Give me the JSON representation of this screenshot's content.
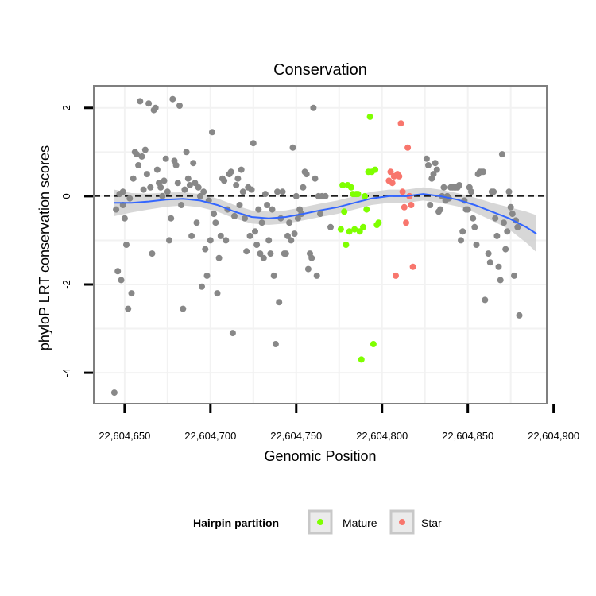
{
  "chart_data": {
    "type": "scatter",
    "title": "Conservation",
    "xlabel": "Genomic Position",
    "ylabel": "phyloP LRT conservation scores",
    "xlim": [
      22604632,
      22604896
    ],
    "ylim": [
      -4.7,
      2.5
    ],
    "xticks": [
      22604650,
      22604700,
      22604750,
      22604800,
      22604850,
      22604900
    ],
    "xtick_labels": [
      "22,604,650",
      "22,604,700",
      "22,604,750",
      "22,604,800",
      "22,604,850",
      "22,604,900"
    ],
    "yticks": [
      -4,
      -2,
      0,
      2
    ],
    "ytick_labels": [
      "-4",
      "-2",
      "0",
      "2"
    ],
    "reference_line": {
      "y": 0,
      "style": "dashed",
      "color": "#000000"
    },
    "legend": {
      "title": "Hairpin partition",
      "position": "bottom",
      "entries": [
        {
          "label": "Mature",
          "color": "#7FFF00"
        },
        {
          "label": "Star",
          "color": "#F8766D"
        }
      ]
    },
    "colors": {
      "other": "#888888",
      "mature": "#7FFF00",
      "star": "#F8766D",
      "smooth": "#3366FF",
      "band": "#D0D0D0",
      "grid": "#F2F2F2"
    },
    "series": [
      {
        "name": "Other",
        "points": [
          [
            22604644,
            -4.45
          ],
          [
            22604645,
            -0.3
          ],
          [
            22604646,
            -1.7
          ],
          [
            22604647,
            0.05
          ],
          [
            22604648,
            -1.9
          ],
          [
            22604649,
            -0.2
          ],
          [
            22604649,
            0.1
          ],
          [
            22604650,
            -0.5
          ],
          [
            22604651,
            -1.1
          ],
          [
            22604652,
            -2.55
          ],
          [
            22604653,
            -0.05
          ],
          [
            22604654,
            -2.2
          ],
          [
            22604655,
            0.4
          ],
          [
            22604656,
            1.0
          ],
          [
            22604657,
            0.95
          ],
          [
            22604658,
            0.7
          ],
          [
            22604659,
            2.15
          ],
          [
            22604660,
            0.9
          ],
          [
            22604661,
            0.15
          ],
          [
            22604662,
            1.05
          ],
          [
            22604663,
            0.5
          ],
          [
            22604664,
            2.1
          ],
          [
            22604665,
            0.2
          ],
          [
            22604666,
            -1.3
          ],
          [
            22604667,
            1.95
          ],
          [
            22604668,
            2.0
          ],
          [
            22604669,
            0.6
          ],
          [
            22604670,
            0.3
          ],
          [
            22604671,
            0.2
          ],
          [
            22604672,
            0.0
          ],
          [
            22604673,
            0.35
          ],
          [
            22604674,
            0.85
          ],
          [
            22604675,
            0.1
          ],
          [
            22604676,
            -1.0
          ],
          [
            22604677,
            -0.5
          ],
          [
            22604678,
            2.2
          ],
          [
            22604679,
            0.8
          ],
          [
            22604680,
            0.7
          ],
          [
            22604681,
            0.3
          ],
          [
            22604682,
            2.05
          ],
          [
            22604683,
            -0.2
          ],
          [
            22604684,
            -2.55
          ],
          [
            22604685,
            0.15
          ],
          [
            22604686,
            1.0
          ],
          [
            22604687,
            0.4
          ],
          [
            22604688,
            0.25
          ],
          [
            22604689,
            -0.9
          ],
          [
            22604690,
            0.75
          ],
          [
            22604691,
            0.3
          ],
          [
            22604692,
            -0.6
          ],
          [
            22604693,
            0.2
          ],
          [
            22604694,
            0.0
          ],
          [
            22604695,
            -2.05
          ],
          [
            22604696,
            0.1
          ],
          [
            22604697,
            -1.2
          ],
          [
            22604698,
            -1.8
          ],
          [
            22604699,
            -0.1
          ],
          [
            22604700,
            -1.0
          ],
          [
            22604701,
            1.45
          ],
          [
            22604702,
            -0.4
          ],
          [
            22604703,
            -0.6
          ],
          [
            22604704,
            -2.2
          ],
          [
            22604705,
            -1.4
          ],
          [
            22604706,
            -0.9
          ],
          [
            22604707,
            0.4
          ],
          [
            22604708,
            0.35
          ],
          [
            22604709,
            -1.0
          ],
          [
            22604710,
            -0.3
          ],
          [
            22604711,
            0.5
          ],
          [
            22604712,
            0.55
          ],
          [
            22604713,
            -3.1
          ],
          [
            22604714,
            -0.45
          ],
          [
            22604715,
            0.25
          ],
          [
            22604716,
            0.4
          ],
          [
            22604717,
            -0.2
          ],
          [
            22604718,
            0.6
          ],
          [
            22604719,
            0.1
          ],
          [
            22604720,
            -0.5
          ],
          [
            22604721,
            -1.25
          ],
          [
            22604722,
            0.2
          ],
          [
            22604723,
            -0.9
          ],
          [
            22604724,
            0.15
          ],
          [
            22604725,
            1.2
          ],
          [
            22604726,
            -0.8
          ],
          [
            22604727,
            -1.1
          ],
          [
            22604728,
            -0.3
          ],
          [
            22604729,
            -1.3
          ],
          [
            22604730,
            -0.6
          ],
          [
            22604731,
            -1.4
          ],
          [
            22604732,
            0.05
          ],
          [
            22604733,
            -0.2
          ],
          [
            22604734,
            -1.0
          ],
          [
            22604735,
            -1.3
          ],
          [
            22604736,
            -0.3
          ],
          [
            22604737,
            -1.8
          ],
          [
            22604738,
            -3.35
          ],
          [
            22604739,
            0.1
          ],
          [
            22604740,
            -2.4
          ],
          [
            22604741,
            -0.5
          ],
          [
            22604742,
            0.1
          ],
          [
            22604743,
            -1.3
          ],
          [
            22604744,
            -1.3
          ],
          [
            22604745,
            -0.9
          ],
          [
            22604746,
            -0.6
          ],
          [
            22604747,
            -1.0
          ],
          [
            22604748,
            1.1
          ],
          [
            22604749,
            -0.85
          ],
          [
            22604750,
            0.0
          ],
          [
            22604751,
            -0.5
          ],
          [
            22604752,
            -0.3
          ],
          [
            22604753,
            -0.4
          ],
          [
            22604754,
            0.2
          ],
          [
            22604755,
            0.55
          ],
          [
            22604756,
            0.5
          ],
          [
            22604757,
            -1.65
          ],
          [
            22604758,
            -1.3
          ],
          [
            22604759,
            -1.4
          ],
          [
            22604760,
            2.0
          ],
          [
            22604761,
            0.4
          ],
          [
            22604762,
            -1.8
          ],
          [
            22604763,
            0.0
          ],
          [
            22604764,
            -0.4
          ],
          [
            22604765,
            0.0
          ],
          [
            22604767,
            0.0
          ],
          [
            22604770,
            -0.7
          ],
          [
            22604826,
            0.85
          ],
          [
            22604827,
            0.7
          ],
          [
            22604828,
            -0.2
          ],
          [
            22604829,
            0.4
          ],
          [
            22604830,
            0.5
          ],
          [
            22604831,
            0.75
          ],
          [
            22604832,
            0.6
          ],
          [
            22604833,
            -0.35
          ],
          [
            22604834,
            -0.3
          ],
          [
            22604835,
            0.0
          ],
          [
            22604836,
            0.2
          ],
          [
            22604837,
            -0.1
          ],
          [
            22604838,
            0.0
          ],
          [
            22604839,
            -0.05
          ],
          [
            22604840,
            0.2
          ],
          [
            22604841,
            0.2
          ],
          [
            22604842,
            0.2
          ],
          [
            22604843,
            0.2
          ],
          [
            22604844,
            0.2
          ],
          [
            22604845,
            0.25
          ],
          [
            22604846,
            -1.0
          ],
          [
            22604847,
            -0.8
          ],
          [
            22604848,
            -0.1
          ],
          [
            22604849,
            -0.3
          ],
          [
            22604850,
            -0.3
          ],
          [
            22604851,
            0.2
          ],
          [
            22604852,
            0.1
          ],
          [
            22604853,
            -0.5
          ],
          [
            22604854,
            -0.7
          ],
          [
            22604855,
            -1.1
          ],
          [
            22604856,
            0.5
          ],
          [
            22604857,
            0.55
          ],
          [
            22604858,
            0.55
          ],
          [
            22604859,
            0.55
          ],
          [
            22604860,
            -2.35
          ],
          [
            22604862,
            -1.3
          ],
          [
            22604863,
            -1.5
          ],
          [
            22604864,
            0.1
          ],
          [
            22604865,
            0.1
          ],
          [
            22604866,
            -0.5
          ],
          [
            22604867,
            -0.9
          ],
          [
            22604868,
            -1.6
          ],
          [
            22604869,
            -1.9
          ],
          [
            22604870,
            0.95
          ],
          [
            22604871,
            -0.6
          ],
          [
            22604872,
            -1.2
          ],
          [
            22604873,
            -0.8
          ],
          [
            22604874,
            0.1
          ],
          [
            22604875,
            -0.25
          ],
          [
            22604876,
            -0.4
          ],
          [
            22604877,
            -1.8
          ],
          [
            22604878,
            -0.55
          ],
          [
            22604879,
            -0.7
          ],
          [
            22604880,
            -2.7
          ]
        ]
      },
      {
        "name": "Mature",
        "points": [
          [
            22604776,
            -0.75
          ],
          [
            22604777,
            0.25
          ],
          [
            22604778,
            -0.35
          ],
          [
            22604779,
            -1.1
          ],
          [
            22604780,
            0.25
          ],
          [
            22604781,
            -0.8
          ],
          [
            22604782,
            0.2
          ],
          [
            22604783,
            0.05
          ],
          [
            22604784,
            -0.75
          ],
          [
            22604785,
            0.05
          ],
          [
            22604786,
            0.05
          ],
          [
            22604787,
            -0.8
          ],
          [
            22604788,
            -3.7
          ],
          [
            22604789,
            -0.7
          ],
          [
            22604790,
            0.0
          ],
          [
            22604791,
            -0.3
          ],
          [
            22604792,
            0.55
          ],
          [
            22604793,
            1.8
          ],
          [
            22604794,
            0.55
          ],
          [
            22604795,
            -3.35
          ],
          [
            22604796,
            0.6
          ],
          [
            22604797,
            -0.65
          ],
          [
            22604798,
            -0.6
          ]
        ]
      },
      {
        "name": "Star",
        "points": [
          [
            22604804,
            0.35
          ],
          [
            22604805,
            0.55
          ],
          [
            22604806,
            0.3
          ],
          [
            22604807,
            0.45
          ],
          [
            22604808,
            -1.8
          ],
          [
            22604809,
            0.5
          ],
          [
            22604810,
            0.45
          ],
          [
            22604811,
            1.65
          ],
          [
            22604812,
            0.1
          ],
          [
            22604813,
            -0.25
          ],
          [
            22604814,
            -0.6
          ],
          [
            22604815,
            1.1
          ],
          [
            22604816,
            0.0
          ],
          [
            22604817,
            -0.2
          ],
          [
            22604818,
            -1.6
          ]
        ]
      }
    ],
    "smooth": {
      "method": "loess",
      "x": [
        22604644,
        22604654,
        22604664,
        22604674,
        22604684,
        22604694,
        22604704,
        22604714,
        22604724,
        22604734,
        22604744,
        22604754,
        22604764,
        22604774,
        22604784,
        22604794,
        22604804,
        22604814,
        22604824,
        22604834,
        22604844,
        22604854,
        22604864,
        22604874,
        22604884,
        22604890
      ],
      "y": [
        -0.15,
        -0.15,
        -0.12,
        -0.08,
        -0.06,
        -0.1,
        -0.2,
        -0.35,
        -0.47,
        -0.5,
        -0.47,
        -0.4,
        -0.32,
        -0.25,
        -0.15,
        -0.05,
        0.0,
        0.0,
        0.05,
        0.0,
        -0.08,
        -0.2,
        -0.35,
        -0.5,
        -0.7,
        -0.85
      ],
      "ci": [
        0.3,
        0.22,
        0.18,
        0.16,
        0.15,
        0.15,
        0.15,
        0.15,
        0.15,
        0.15,
        0.15,
        0.15,
        0.15,
        0.15,
        0.15,
        0.15,
        0.15,
        0.15,
        0.15,
        0.15,
        0.15,
        0.17,
        0.2,
        0.25,
        0.35,
        0.42
      ]
    }
  }
}
